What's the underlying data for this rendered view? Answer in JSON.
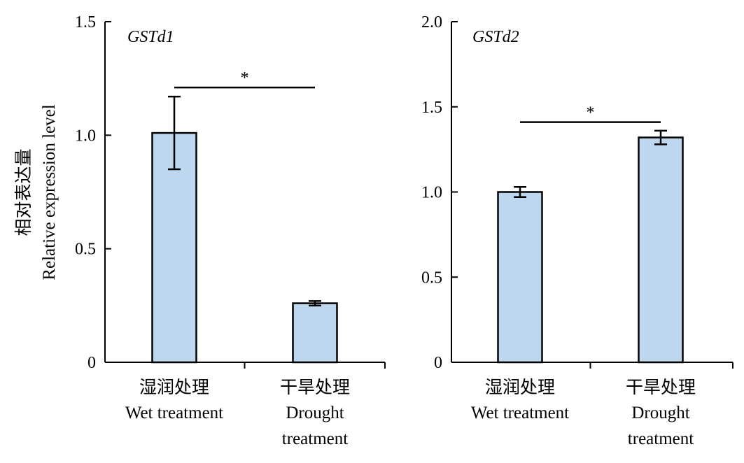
{
  "y_axis_label_cn": "相对表达量",
  "y_axis_label_en": "Relative expression level",
  "chart_data": [
    {
      "type": "bar",
      "title": "GSTd1",
      "categories": [
        {
          "cn": "湿润处理",
          "en": [
            "Wet treatment"
          ]
        },
        {
          "cn": "干旱处理",
          "en": [
            "Drought",
            "treatment"
          ]
        }
      ],
      "series": [
        {
          "values": [
            1.01,
            0.26
          ],
          "errors": [
            0.16,
            0.01
          ]
        }
      ],
      "ylim": [
        0,
        1.5
      ],
      "yticks": [
        "0",
        "0.5",
        "1.0",
        "1.5"
      ],
      "ytick_values": [
        0,
        0.5,
        1.0,
        1.5
      ],
      "bar_color": "#bdd7ee",
      "significance": {
        "label": "*",
        "level": 1.21
      }
    },
    {
      "type": "bar",
      "title": "GSTd2",
      "categories": [
        {
          "cn": "湿润处理",
          "en": [
            "Wet treatment"
          ]
        },
        {
          "cn": "干旱处理",
          "en": [
            "Drought",
            "treatment"
          ]
        }
      ],
      "series": [
        {
          "values": [
            1.0,
            1.32
          ],
          "errors": [
            0.03,
            0.04
          ]
        }
      ],
      "ylim": [
        0,
        2.0
      ],
      "yticks": [
        "0",
        "0.5",
        "1.0",
        "1.5",
        "2.0"
      ],
      "ytick_values": [
        0,
        0.5,
        1.0,
        1.5,
        2.0
      ],
      "bar_color": "#bdd7ee",
      "significance": {
        "label": "*",
        "level": 1.41
      }
    }
  ]
}
